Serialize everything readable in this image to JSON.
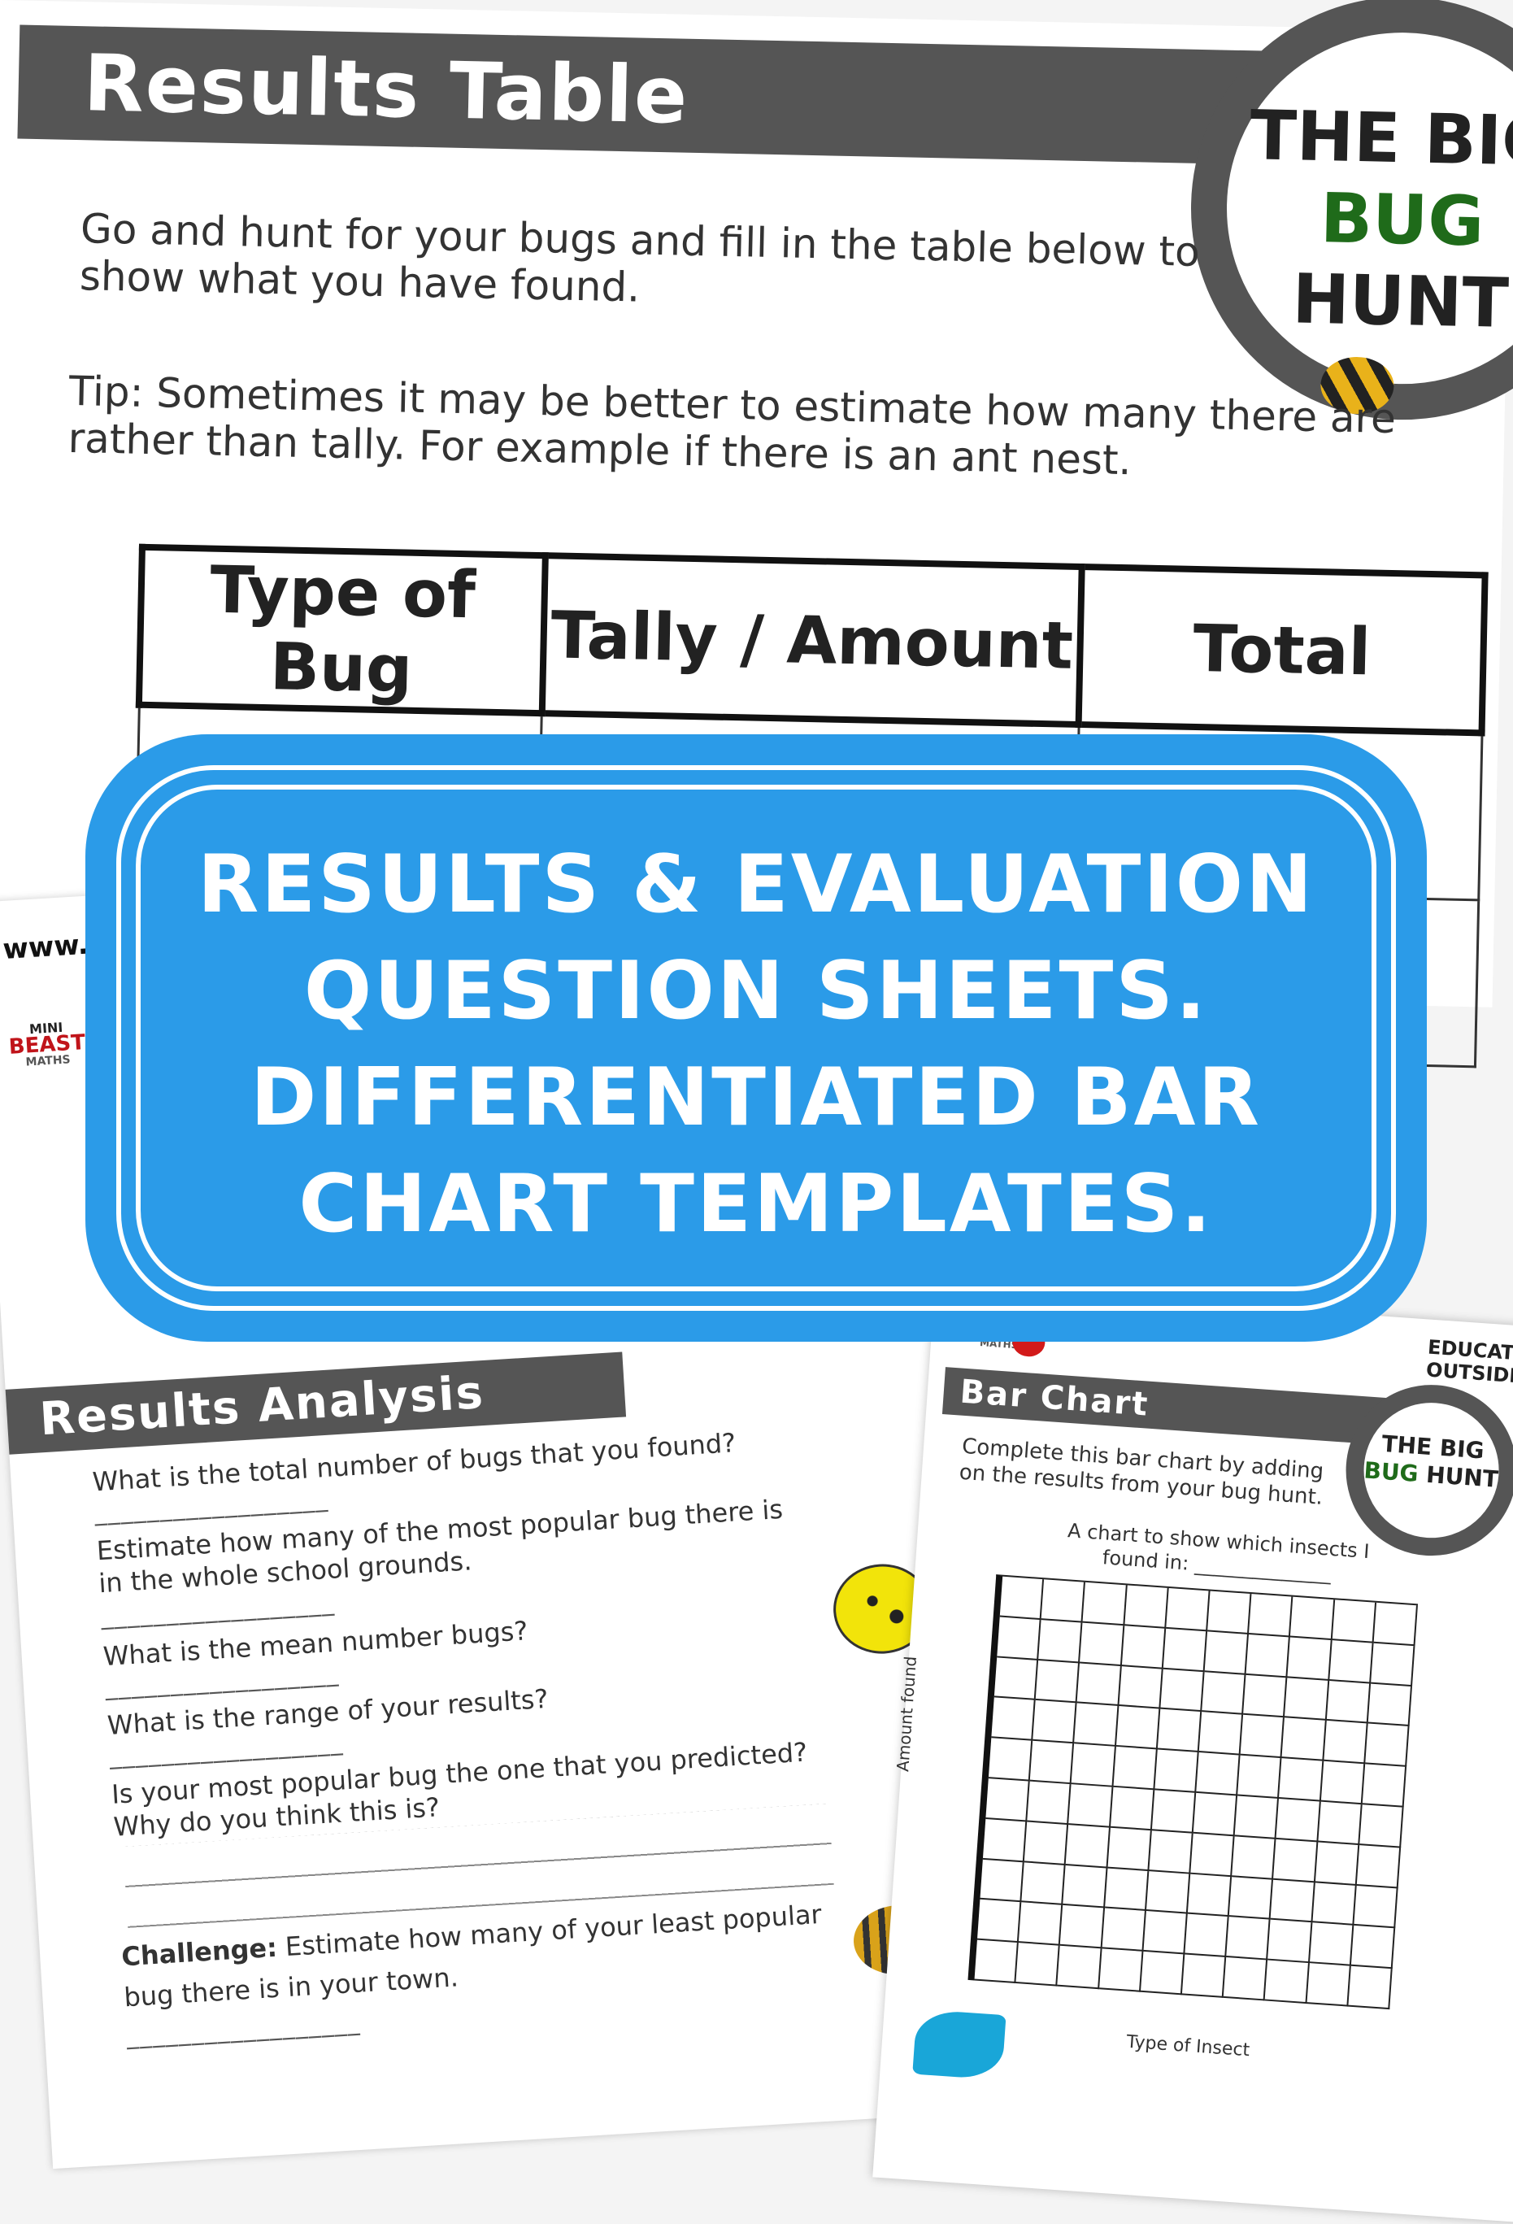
{
  "results_page": {
    "title": "Results Table",
    "logo": {
      "line1": "THE BIG",
      "line2a": "BUG",
      "line2b": "HUNT"
    },
    "intro": "Go and hunt for your bugs and fill in the table below to show what you have found.",
    "tip": "Tip: Sometimes it may be better to estimate how many there are rather than tally. For example if there is an ant nest.",
    "table_headers": [
      "Type of Bug",
      "Tally / Amount",
      "Total"
    ]
  },
  "banner": {
    "lines": [
      "RESULTS & EVALUATION",
      "QUESTION SHEETS.",
      "DIFFERENTIATED BAR",
      "CHART TEMPLATES."
    ],
    "color": "#2b9be8"
  },
  "analysis_page": {
    "website": "www.educateoutside.com",
    "brand": {
      "mini": "MINI",
      "beast": "BEAST",
      "maths": "MATHS"
    },
    "title": "Results Analysis",
    "questions": [
      "What is the total number of bugs that you found?",
      "Estimate how many of the most popular bug there is in the whole school grounds.",
      "What is the mean number bugs?",
      "What is the range of your results?",
      "Is your most popular bug the one that you predicted? Why do you think this is?"
    ],
    "challenge_label": "Challenge:",
    "challenge": "Estimate how many of your least popular bug there is in your town.",
    "blank": "__________________"
  },
  "bar_chart_page": {
    "title": "Bar Chart",
    "brand": "EDUCATE OUTSIDE",
    "maths": "MATHS",
    "logo": {
      "line1": "THE BIG",
      "line2a": "BUG",
      "line2b": "HUNT"
    },
    "instructions": "Complete this bar chart by adding on the results from your bug hunt.",
    "chart_caption": "A chart to show which insects I found in: ______________",
    "y_label": "Amount found",
    "x_label": "Type of Insect"
  }
}
